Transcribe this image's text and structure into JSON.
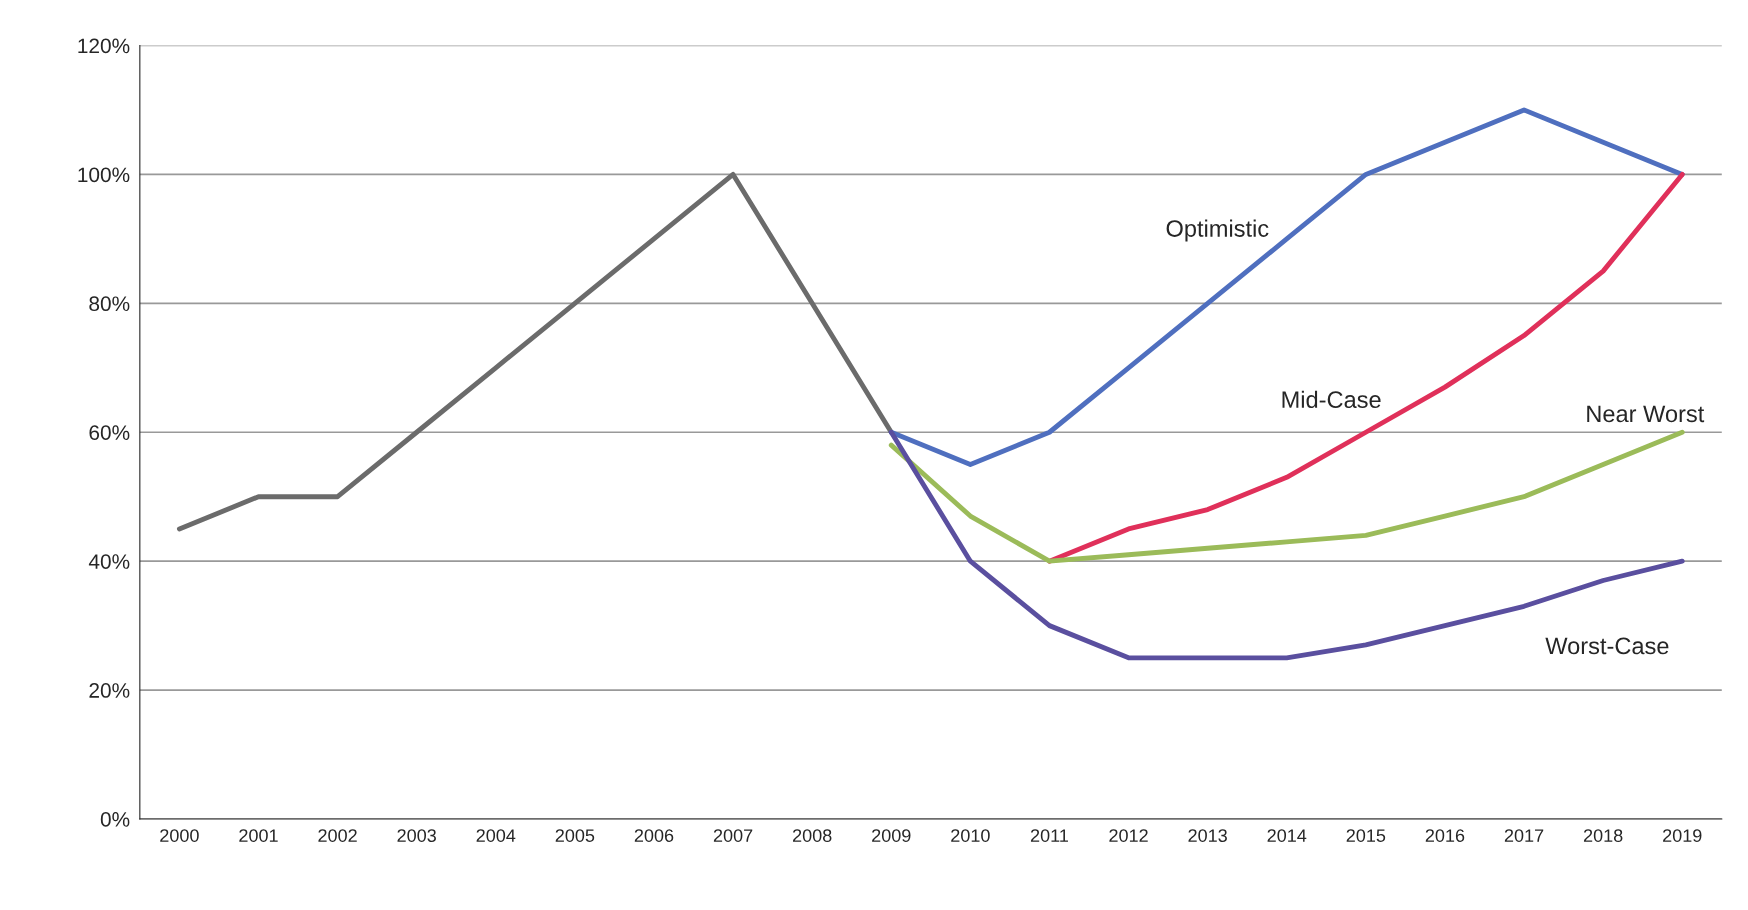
{
  "chart_data": {
    "type": "line",
    "categories": [
      "2000",
      "2001",
      "2002",
      "2003",
      "2004",
      "2005",
      "2006",
      "2007",
      "2008",
      "2009",
      "2010",
      "2011",
      "2012",
      "2013",
      "2014",
      "2015",
      "2016",
      "2017",
      "2018",
      "2019"
    ],
    "series": [
      {
        "color": "#6b6b6b",
        "values": [
          45,
          50,
          50,
          60,
          70,
          80,
          90,
          100,
          80,
          60,
          null,
          null,
          null,
          null,
          null,
          null,
          null,
          null,
          null,
          null
        ]
      },
      {
        "name": "Optimistic",
        "color": "#4f6fbf",
        "values": [
          null,
          null,
          null,
          null,
          null,
          null,
          null,
          null,
          null,
          60,
          55,
          60,
          70,
          80,
          90,
          100,
          105,
          110,
          105,
          100
        ]
      },
      {
        "name": "Mid-Case",
        "color": "#e0305a",
        "values": [
          null,
          null,
          null,
          null,
          null,
          null,
          null,
          null,
          null,
          null,
          null,
          40,
          45,
          48,
          53,
          60,
          67,
          75,
          85,
          100
        ]
      },
      {
        "name": "Near Worst",
        "color": "#9bbb59",
        "values": [
          null,
          null,
          null,
          null,
          null,
          null,
          null,
          null,
          null,
          58,
          47,
          40,
          41,
          42,
          43,
          44,
          47,
          50,
          55,
          60
        ]
      },
      {
        "name": "Worst-Case",
        "color": "#5a4f9f",
        "values": [
          null,
          null,
          null,
          null,
          null,
          null,
          null,
          null,
          null,
          60,
          40,
          30,
          25,
          25,
          25,
          27,
          30,
          33,
          37,
          40
        ]
      }
    ],
    "ylim": [
      0,
      120
    ],
    "yticks": [
      {
        "value": 0,
        "label": "0%"
      },
      {
        "value": 20,
        "label": "20%"
      },
      {
        "value": 40,
        "label": "40%"
      },
      {
        "value": 60,
        "label": "60%"
      },
      {
        "value": 80,
        "label": "80%"
      },
      {
        "value": 100,
        "label": "100%"
      },
      {
        "value": 120,
        "label": "120%"
      }
    ],
    "grid": "y"
  }
}
